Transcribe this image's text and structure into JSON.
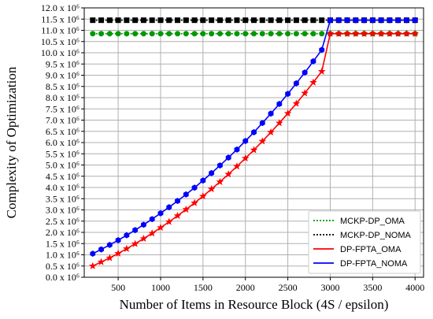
{
  "chart_data": {
    "type": "line",
    "title": "",
    "xlabel": "Number of Items in Resource Block (4S / epsilon)",
    "ylabel": "Complexity of Optimization",
    "xlim": [
      100,
      4100
    ],
    "ylim": [
      0,
      12000000
    ],
    "x_ticks": [
      500,
      1000,
      1500,
      2000,
      2500,
      3000,
      3500,
      4000
    ],
    "x_tick_labels": [
      "500",
      "1000",
      "1500",
      "2000",
      "2500",
      "3000",
      "3500",
      "4000"
    ],
    "y_ticks": [
      0,
      500000,
      1000000,
      1500000,
      2000000,
      2500000,
      3000000,
      3500000,
      4000000,
      4500000,
      5000000,
      5500000,
      6000000,
      6500000,
      7000000,
      7500000,
      8000000,
      8500000,
      9000000,
      9500000,
      10000000,
      10500000,
      11000000,
      11500000,
      12000000
    ],
    "y_tick_labels": [
      "0.0 x 10⁶",
      "0.5 x 10⁶",
      "1.0 x 10⁶",
      "1.5 x 10⁶",
      "2.0 x 10⁶",
      "2.5 x 10⁶",
      "3.0 x 10⁶",
      "3.5 x 10⁶",
      "4.0 x 10⁶",
      "4.5 x 10⁶",
      "5.0 x 10⁶",
      "5.5 x 10⁶",
      "6.0 x 10⁶",
      "6.5 x 10⁶",
      "7.0 x 10⁶",
      "7.5 x 10⁶",
      "8.0 x 10⁶",
      "8.5 x 10⁶",
      "9.0 x 10⁶",
      "9.5 x 10⁶",
      "10.0 x 10⁶",
      "10.5 x 10⁶",
      "11.0 x 10⁶",
      "11.5 x 10⁶",
      "12.0 x 10⁶"
    ],
    "grid": true,
    "legend_position": "bottom-right",
    "x": [
      200,
      300,
      400,
      500,
      600,
      700,
      800,
      900,
      1000,
      1100,
      1200,
      1300,
      1400,
      1500,
      1600,
      1700,
      1800,
      1900,
      2000,
      2100,
      2200,
      2300,
      2400,
      2500,
      2600,
      2700,
      2800,
      2900,
      3000,
      3100,
      3200,
      3300,
      3400,
      3500,
      3600,
      3700,
      3800,
      3900,
      4000
    ],
    "series": [
      {
        "name": "MCKP-DP_OMA",
        "color": "#009900",
        "line_style": "dotted",
        "marker": "circle",
        "values": [
          10850000,
          10850000,
          10850000,
          10850000,
          10850000,
          10850000,
          10850000,
          10850000,
          10850000,
          10850000,
          10850000,
          10850000,
          10850000,
          10850000,
          10850000,
          10850000,
          10850000,
          10850000,
          10850000,
          10850000,
          10850000,
          10850000,
          10850000,
          10850000,
          10850000,
          10850000,
          10850000,
          10850000,
          10850000,
          10850000,
          10850000,
          10850000,
          10850000,
          10850000,
          10850000,
          10850000,
          10850000,
          10850000,
          10850000
        ]
      },
      {
        "name": "MCKP-DP_NOMA",
        "color": "#000000",
        "line_style": "dotted",
        "marker": "square",
        "values": [
          11450000,
          11450000,
          11450000,
          11450000,
          11450000,
          11450000,
          11450000,
          11450000,
          11450000,
          11450000,
          11450000,
          11450000,
          11450000,
          11450000,
          11450000,
          11450000,
          11450000,
          11450000,
          11450000,
          11450000,
          11450000,
          11450000,
          11450000,
          11450000,
          11450000,
          11450000,
          11450000,
          11450000,
          11450000,
          11450000,
          11450000,
          11450000,
          11450000,
          11450000,
          11450000,
          11450000,
          11450000,
          11450000,
          11450000
        ]
      },
      {
        "name": "DP-FPTA_OMA",
        "color": "#ff0000",
        "line_style": "solid",
        "marker": "star",
        "values": [
          500000,
          680000,
          860000,
          1060000,
          1270000,
          1490000,
          1720000,
          1960000,
          2210000,
          2470000,
          2740000,
          3020000,
          3310000,
          3610000,
          3930000,
          4250000,
          4590000,
          4940000,
          5300000,
          5670000,
          6060000,
          6460000,
          6870000,
          7300000,
          7740000,
          8200000,
          8680000,
          9170000,
          10850000,
          10850000,
          10850000,
          10850000,
          10850000,
          10850000,
          10850000,
          10850000,
          10850000,
          10850000,
          10850000
        ]
      },
      {
        "name": "DP-FPTA_NOMA",
        "color": "#0000ff",
        "line_style": "solid",
        "marker": "hexagon",
        "values": [
          1050000,
          1240000,
          1440000,
          1650000,
          1870000,
          2100000,
          2340000,
          2590000,
          2850000,
          3120000,
          3400000,
          3690000,
          3990000,
          4310000,
          4640000,
          4980000,
          5330000,
          5690000,
          6070000,
          6460000,
          6870000,
          7290000,
          7720000,
          8170000,
          8640000,
          9120000,
          9620000,
          10130000,
          11450000,
          11450000,
          11450000,
          11450000,
          11450000,
          11450000,
          11450000,
          11450000,
          11450000,
          11450000,
          11450000
        ]
      }
    ]
  }
}
